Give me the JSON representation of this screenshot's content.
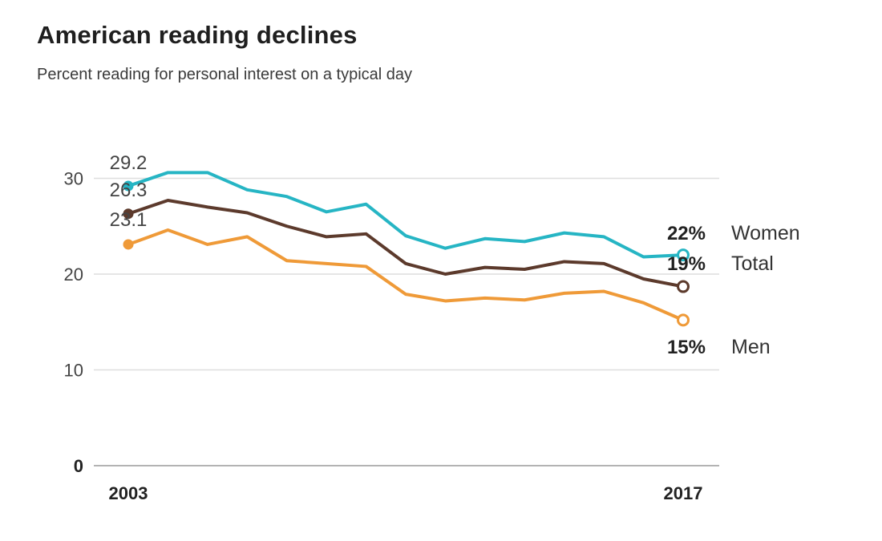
{
  "chart_data": {
    "type": "line",
    "title": "American reading declines",
    "subtitle": "Percent reading for personal interest on a typical day",
    "x": [
      2003,
      2004,
      2005,
      2006,
      2007,
      2008,
      2009,
      2010,
      2011,
      2012,
      2013,
      2014,
      2015,
      2016,
      2017
    ],
    "x_tick_labels": [
      "2003",
      "2017"
    ],
    "y_ticks": [
      0,
      10,
      20,
      30
    ],
    "y_tick_labels": [
      "0",
      "10",
      "20",
      "30"
    ],
    "ylim": [
      0,
      32
    ],
    "grid": true,
    "series": [
      {
        "name": "Women",
        "color": "#26b5c4",
        "values": [
          29.2,
          30.6,
          30.6,
          28.8,
          28.1,
          26.5,
          27.3,
          24.0,
          22.7,
          23.7,
          23.4,
          24.3,
          23.9,
          21.8,
          22.0
        ],
        "start_label": "29.2",
        "end_label": "22%"
      },
      {
        "name": "Total",
        "color": "#5c3a2c",
        "values": [
          26.3,
          27.7,
          27.0,
          26.4,
          25.0,
          23.9,
          24.2,
          21.1,
          20.0,
          20.7,
          20.5,
          21.3,
          21.1,
          19.5,
          18.7
        ],
        "start_label": "26.3",
        "end_label": "19%"
      },
      {
        "name": "Men",
        "color": "#ef9a38",
        "values": [
          23.1,
          24.6,
          23.1,
          23.9,
          21.4,
          21.1,
          20.8,
          17.9,
          17.2,
          17.5,
          17.3,
          18.0,
          18.2,
          17.0,
          15.2
        ],
        "start_label": "23.1",
        "end_label": "15%"
      }
    ]
  }
}
